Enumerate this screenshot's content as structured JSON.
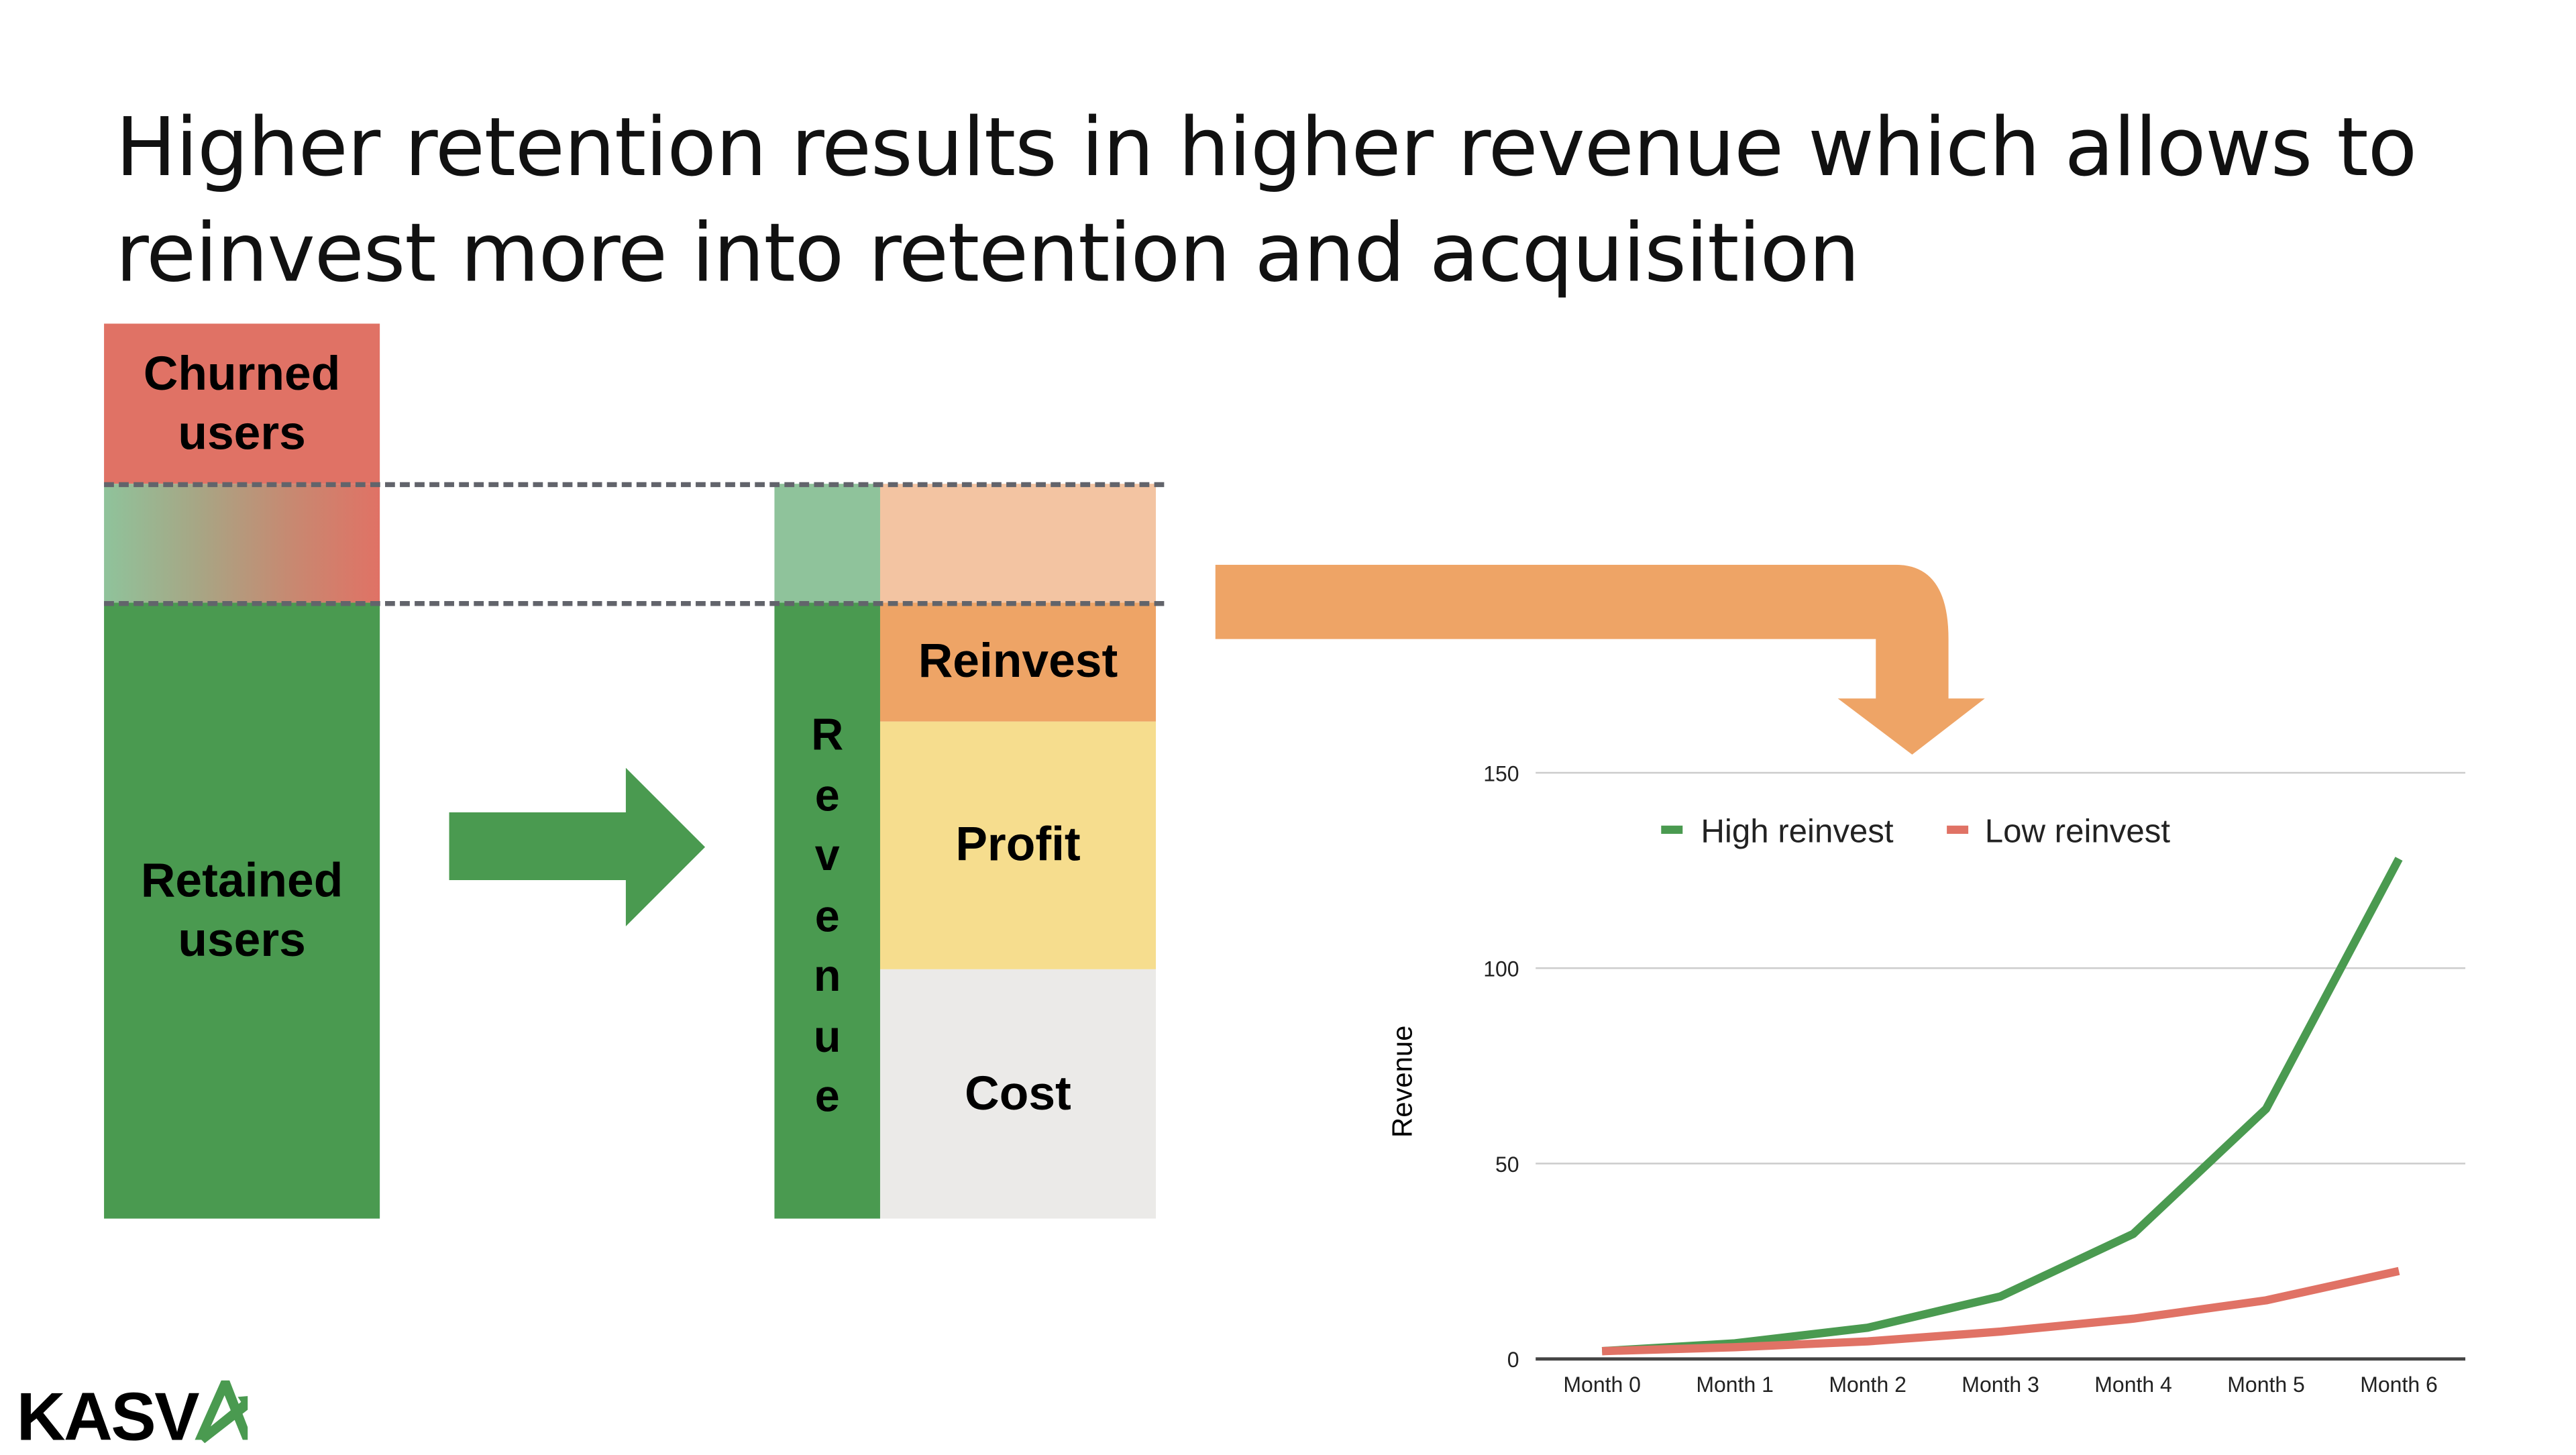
{
  "title": "Higher retention results in higher revenue which allows to reinvest more into retention and acquisition",
  "users_bar": {
    "churned_label": "Churned users",
    "retained_label": "Retained users"
  },
  "revenue_bar": {
    "vertical_label": [
      "R",
      "e",
      "v",
      "e",
      "n",
      "u",
      "e"
    ],
    "segments": {
      "reinvest": "Reinvest",
      "profit": "Profit",
      "cost": "Cost"
    }
  },
  "colors": {
    "green": "#4a9a50",
    "light_green": "#8fc39b",
    "red": "#e07265",
    "orange": "#eea466",
    "light_orange": "#f3c4a2",
    "yellow": "#f6dd8e",
    "grey": "#ebeae8"
  },
  "logo": {
    "text": "KASVA"
  },
  "chart_data": {
    "type": "line",
    "title": "",
    "xlabel": "",
    "ylabel": "Revenue",
    "categories": [
      "Month 0",
      "Month 1",
      "Month 2",
      "Month 3",
      "Month 4",
      "Month 5",
      "Month 6"
    ],
    "ylim": [
      0,
      150
    ],
    "yticks": [
      "0",
      "50",
      "100",
      "150"
    ],
    "grid": true,
    "legend": "top",
    "series": [
      {
        "name": "High reinvest",
        "color": "#4a9a50",
        "values": [
          2,
          4,
          8,
          16,
          32,
          64,
          128
        ]
      },
      {
        "name": "Low reinvest",
        "color": "#e07265",
        "values": [
          2,
          3,
          4.5,
          7,
          10.3,
          15,
          22.5
        ]
      }
    ]
  }
}
